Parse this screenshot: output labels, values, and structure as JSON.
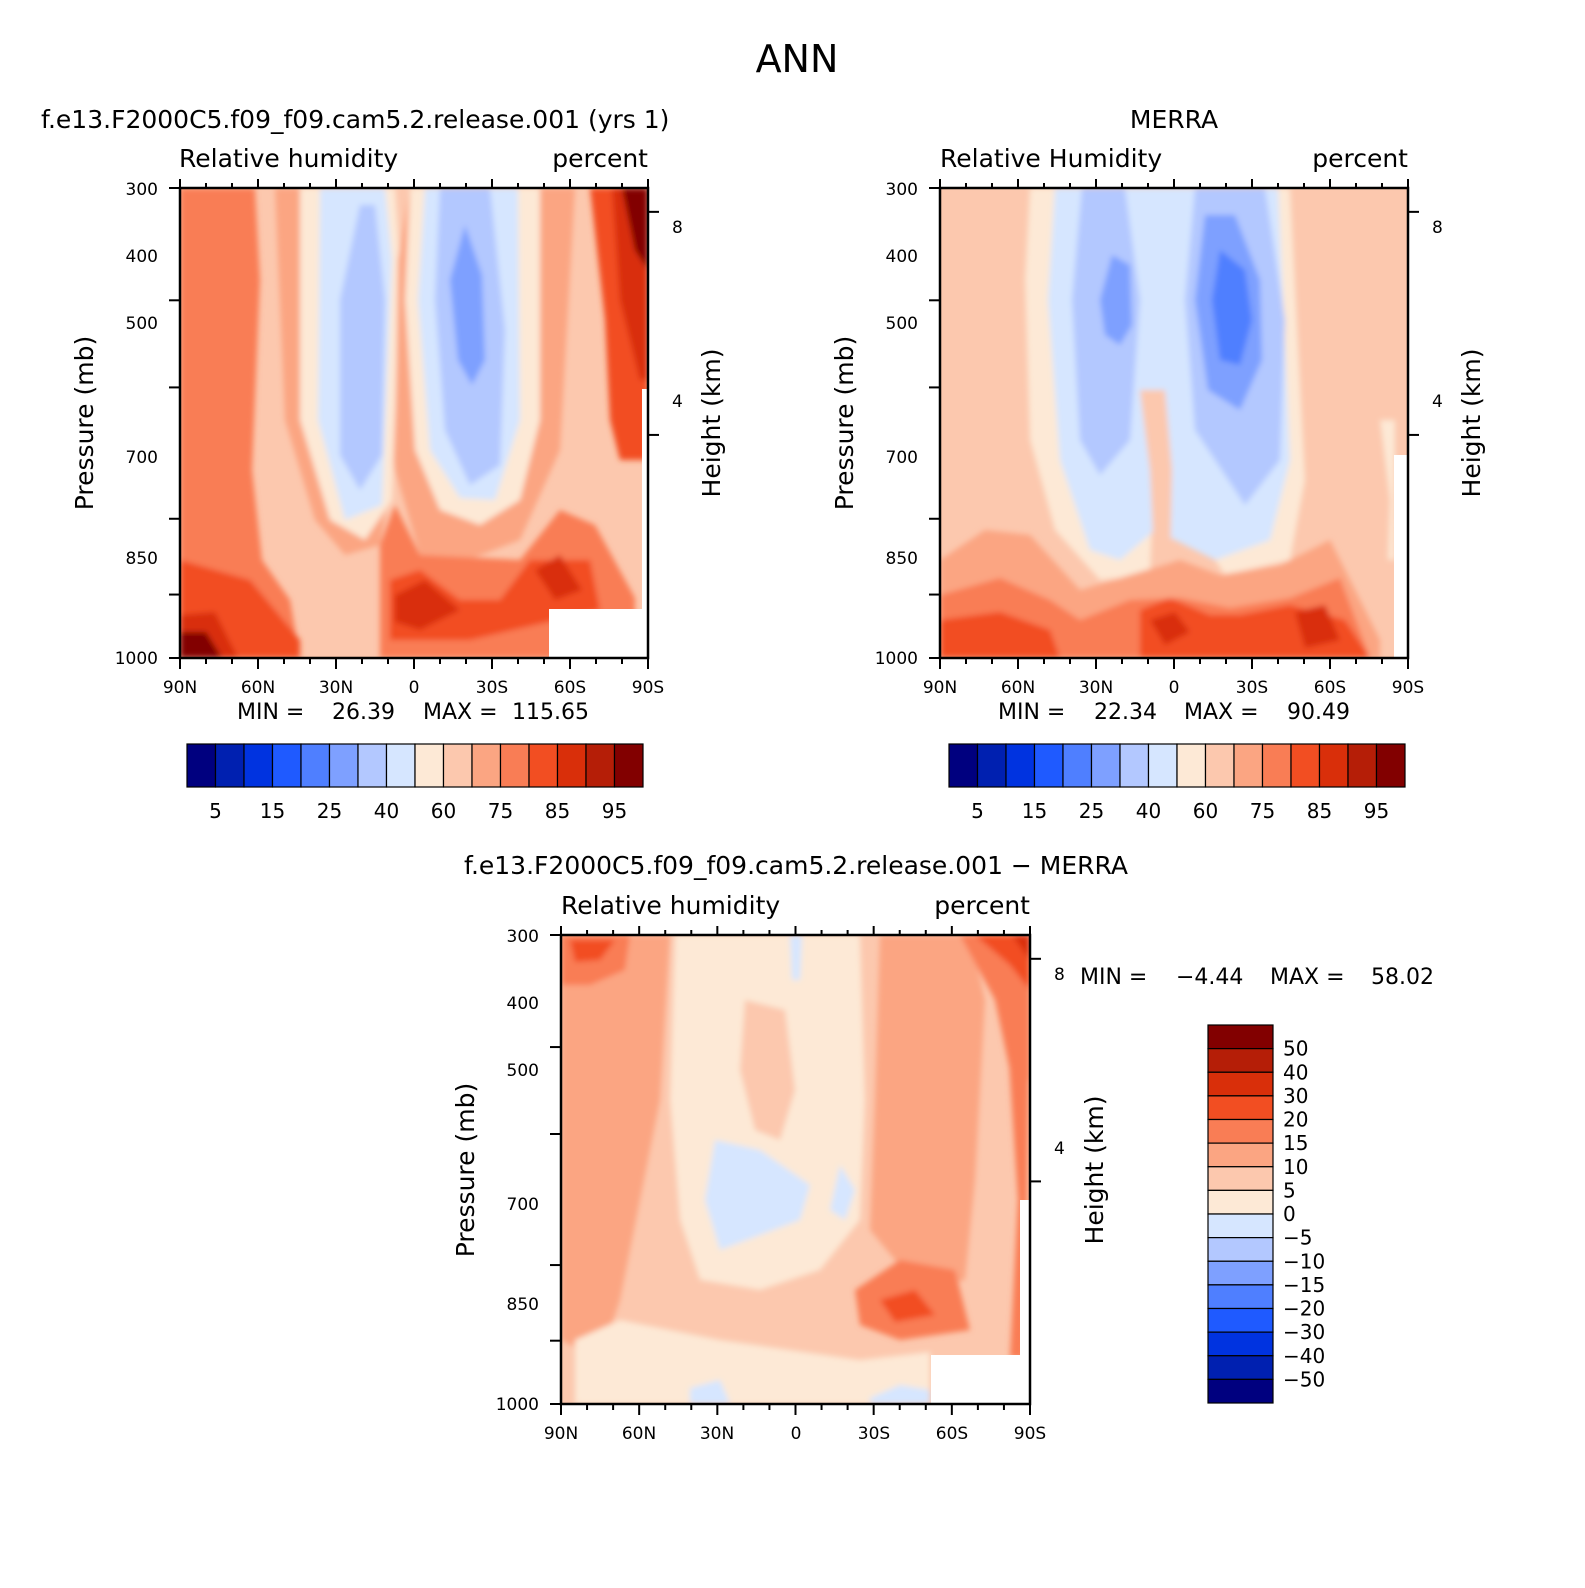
{
  "figure": {
    "title": "ANN"
  },
  "chart_data": [
    {
      "type": "heatmap",
      "title": "f.e13.F2000C5.f09_f09.cam5.2.release.001 (yrs 1)",
      "left_label": "Relative humidity",
      "right_label": "percent",
      "ylabel": "Pressure (mb)",
      "ylabel_right": "Height (km)",
      "x_ticks": [
        "90N",
        "60N",
        "30N",
        "0",
        "30S",
        "60S",
        "90S"
      ],
      "y_ticks": [
        "300",
        "400",
        "500",
        "700",
        "850",
        "1000"
      ],
      "y_ticks_right": [
        "8",
        "4"
      ],
      "xlim": [
        90,
        -90
      ],
      "ylim": [
        1000,
        300
      ],
      "min_label": "MIN =",
      "min": "26.39",
      "max_label": "MAX =",
      "max": "115.65",
      "colorbar": {
        "levels": [
          "5",
          "15",
          "25",
          "40",
          "60",
          "75",
          "85",
          "95"
        ],
        "colors": [
          "#00007f",
          "#0020b0",
          "#0033e0",
          "#1f5aff",
          "#4f7fff",
          "#7ea0ff",
          "#b3c8ff",
          "#d6e6ff",
          "#fde9d6",
          "#fcc8ae",
          "#fba582",
          "#f97d55",
          "#f24e22",
          "#d92f0a",
          "#b51e07",
          "#820000"
        ]
      }
    },
    {
      "type": "heatmap",
      "title": "MERRA",
      "left_label": "Relative Humidity",
      "right_label": "percent",
      "ylabel": "Pressure (mb)",
      "ylabel_right": "Height (km)",
      "x_ticks": [
        "90N",
        "60N",
        "30N",
        "0",
        "30S",
        "60S",
        "90S"
      ],
      "y_ticks": [
        "300",
        "400",
        "500",
        "700",
        "850",
        "1000"
      ],
      "y_ticks_right": [
        "8",
        "4"
      ],
      "xlim": [
        90,
        -90
      ],
      "ylim": [
        1000,
        300
      ],
      "min_label": "MIN =",
      "min": "22.34",
      "max_label": "MAX =",
      "max": "90.49",
      "colorbar": {
        "levels": [
          "5",
          "15",
          "25",
          "40",
          "60",
          "75",
          "85",
          "95"
        ],
        "colors": [
          "#00007f",
          "#0020b0",
          "#0033e0",
          "#1f5aff",
          "#4f7fff",
          "#7ea0ff",
          "#b3c8ff",
          "#d6e6ff",
          "#fde9d6",
          "#fcc8ae",
          "#fba582",
          "#f97d55",
          "#f24e22",
          "#d92f0a",
          "#b51e07",
          "#820000"
        ]
      }
    },
    {
      "type": "heatmap",
      "title": "f.e13.F2000C5.f09_f09.cam5.2.release.001 − MERRA",
      "left_label": "Relative humidity",
      "right_label": "percent",
      "ylabel": "Pressure (mb)",
      "ylabel_right": "Height (km)",
      "x_ticks": [
        "90N",
        "60N",
        "30N",
        "0",
        "30S",
        "60S",
        "90S"
      ],
      "y_ticks": [
        "300",
        "400",
        "500",
        "700",
        "850",
        "1000"
      ],
      "y_ticks_right": [
        "8",
        "4"
      ],
      "xlim": [
        90,
        -90
      ],
      "ylim": [
        1000,
        300
      ],
      "min_label": "MIN =",
      "min": "−4.44",
      "max_label": "MAX =",
      "max": "58.02",
      "colorbar": {
        "levels": [
          "50",
          "40",
          "30",
          "20",
          "15",
          "10",
          "5",
          "0",
          "−5",
          "−10",
          "−15",
          "−20",
          "−30",
          "−40",
          "−50"
        ],
        "colors": [
          "#820000",
          "#b51e07",
          "#d92f0a",
          "#f24e22",
          "#f97d55",
          "#fba582",
          "#fcc8ae",
          "#fde9d6",
          "#d6e6ff",
          "#b3c8ff",
          "#7ea0ff",
          "#4f7fff",
          "#1f5aff",
          "#0033e0",
          "#0020b0",
          "#00007f"
        ]
      }
    }
  ]
}
